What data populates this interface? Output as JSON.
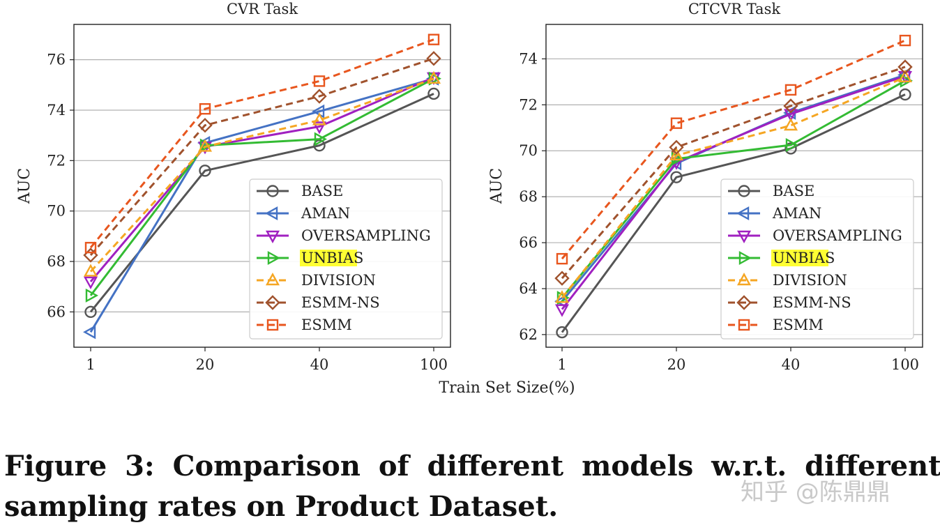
{
  "chart_data": [
    {
      "type": "line",
      "title": "CVR Task",
      "xlabel": "Train Set Size(%)",
      "ylabel": "AUC",
      "categories": [
        "1",
        "20",
        "40",
        "100"
      ],
      "ylim": [
        64.6,
        77.4
      ],
      "yticks": [
        66,
        68,
        70,
        72,
        74,
        76
      ],
      "grid": "horizontal",
      "legend_position": "lower-right",
      "series": [
        {
          "name": "BASE",
          "values": [
            66.0,
            71.6,
            72.6,
            74.65
          ],
          "color": "#555555",
          "dash": "solid",
          "marker": "circle"
        },
        {
          "name": "AMAN",
          "values": [
            65.2,
            72.7,
            73.95,
            75.25
          ],
          "color": "#4472C4",
          "dash": "solid",
          "marker": "triangle-left"
        },
        {
          "name": "OVERSAMPLING",
          "values": [
            67.2,
            72.55,
            73.35,
            75.3
          ],
          "color": "#A020C0",
          "dash": "solid",
          "marker": "triangle-down"
        },
        {
          "name": "UNBIAS",
          "values": [
            66.65,
            72.6,
            72.85,
            75.25
          ],
          "color": "#33BB33",
          "dash": "solid",
          "marker": "triangle-right"
        },
        {
          "name": "DIVISION",
          "values": [
            67.6,
            72.55,
            73.6,
            75.25
          ],
          "color": "#F5A623",
          "dash": "dashed",
          "marker": "triangle-up"
        },
        {
          "name": "ESMM-NS",
          "values": [
            68.25,
            73.4,
            74.55,
            76.05
          ],
          "color": "#A0522D",
          "dash": "dashed",
          "marker": "diamond"
        },
        {
          "name": "ESMM",
          "values": [
            68.55,
            74.05,
            75.15,
            76.8
          ],
          "color": "#E8561E",
          "dash": "dashed",
          "marker": "square"
        }
      ]
    },
    {
      "type": "line",
      "title": "CTCVR Task",
      "xlabel": "Train Set Size(%)",
      "ylabel": "AUC",
      "categories": [
        "1",
        "20",
        "40",
        "100"
      ],
      "ylim": [
        61.45,
        75.5
      ],
      "yticks": [
        62,
        64,
        66,
        68,
        70,
        72,
        74
      ],
      "grid": "horizontal",
      "legend_position": "lower-right",
      "series": [
        {
          "name": "BASE",
          "values": [
            62.1,
            68.85,
            70.1,
            72.45
          ],
          "color": "#555555",
          "dash": "solid",
          "marker": "circle"
        },
        {
          "name": "AMAN",
          "values": [
            63.45,
            69.45,
            71.65,
            73.3
          ],
          "color": "#4472C4",
          "dash": "solid",
          "marker": "triangle-left"
        },
        {
          "name": "OVERSAMPLING",
          "values": [
            63.1,
            69.5,
            71.6,
            73.25
          ],
          "color": "#A020C0",
          "dash": "solid",
          "marker": "triangle-down"
        },
        {
          "name": "UNBIAS",
          "values": [
            63.6,
            69.65,
            70.25,
            73.05
          ],
          "color": "#33BB33",
          "dash": "solid",
          "marker": "triangle-right"
        },
        {
          "name": "DIVISION",
          "values": [
            63.6,
            69.8,
            71.1,
            73.2
          ],
          "color": "#F5A623",
          "dash": "dashed",
          "marker": "triangle-up"
        },
        {
          "name": "ESMM-NS",
          "values": [
            64.45,
            70.15,
            71.95,
            73.65
          ],
          "color": "#A0522D",
          "dash": "dashed",
          "marker": "diamond"
        },
        {
          "name": "ESMM",
          "values": [
            65.3,
            71.2,
            72.65,
            74.8
          ],
          "color": "#E8561E",
          "dash": "dashed",
          "marker": "square"
        }
      ]
    }
  ],
  "legend_highlight": {
    "entry": "UNBIAS",
    "color": "#FFFF33"
  },
  "caption": {
    "line1": "Figure 3: Comparison of different models w.r.t. different",
    "line2": "sampling rates on Product Dataset."
  },
  "watermark": "知乎 @陈鼎鼎"
}
